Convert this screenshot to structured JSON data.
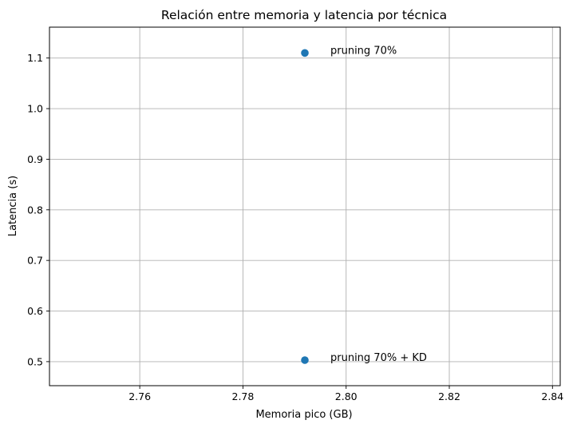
{
  "chart_data": {
    "type": "scatter",
    "title": "Relación entre memoria y latencia por técnica",
    "xlabel": "Memoria pico (GB)",
    "ylabel": "Latencia (s)",
    "xlim": [
      2.7425,
      2.8415
    ],
    "ylim": [
      0.4525,
      1.161
    ],
    "xticks": [
      2.76,
      2.78,
      2.8,
      2.82,
      2.84
    ],
    "xtick_labels": [
      "2.76",
      "2.78",
      "2.80",
      "2.82",
      "2.84"
    ],
    "yticks": [
      0.5,
      0.6,
      0.7,
      0.8,
      0.9,
      1.0,
      1.1
    ],
    "ytick_labels": [
      "0.5",
      "0.6",
      "0.7",
      "0.8",
      "0.9",
      "1.0",
      "1.1"
    ],
    "grid": true,
    "marker_color": "#1f77b4",
    "points": [
      {
        "label": "pruning 70%",
        "x": 2.792,
        "y": 1.11
      },
      {
        "label": "pruning 70% + KD",
        "x": 2.792,
        "y": 0.503
      }
    ]
  }
}
